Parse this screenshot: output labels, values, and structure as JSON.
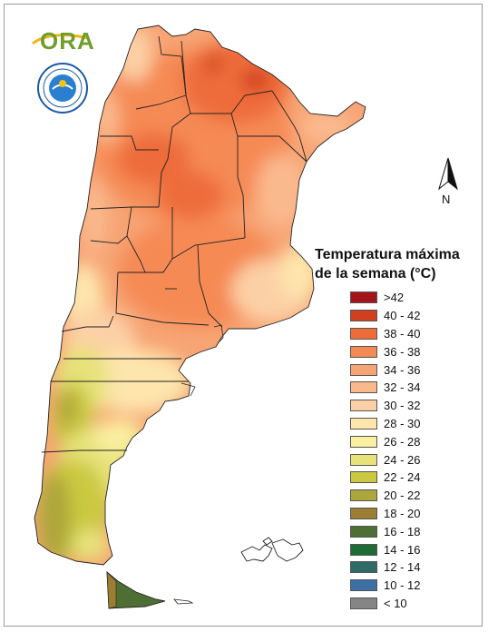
{
  "logo": {
    "text": "ORA"
  },
  "north_arrow": {
    "label": "N"
  },
  "legend": {
    "title_line1": "Temperatura máxima",
    "title_line2": "de la semana (°C)",
    "classes": [
      {
        "label": ">42",
        "color": "#a4141b"
      },
      {
        "label": "40 - 42",
        "color": "#d0401e"
      },
      {
        "label": "38 - 40",
        "color": "#ee6c3a"
      },
      {
        "label": "36 - 38",
        "color": "#f58a55"
      },
      {
        "label": "34 - 36",
        "color": "#f7a474"
      },
      {
        "label": "32 - 34",
        "color": "#fab98d"
      },
      {
        "label": "30 - 32",
        "color": "#fcd0a6"
      },
      {
        "label": "28 - 30",
        "color": "#fde5ac"
      },
      {
        "label": "26 - 28",
        "color": "#f9f0a0"
      },
      {
        "label": "24 - 26",
        "color": "#e7e27a"
      },
      {
        "label": "22 - 24",
        "color": "#cbc93f"
      },
      {
        "label": "20 - 22",
        "color": "#ada63b"
      },
      {
        "label": "18 - 20",
        "color": "#9c7e33"
      },
      {
        "label": "16 - 18",
        "color": "#4e6e33"
      },
      {
        "label": "14 - 16",
        "color": "#1f6d35"
      },
      {
        "label": "12 - 14",
        "color": "#2f6a66"
      },
      {
        "label": "10 - 12",
        "color": "#3d6ea4"
      },
      {
        "label": "< 10",
        "color": "#858585"
      }
    ]
  }
}
